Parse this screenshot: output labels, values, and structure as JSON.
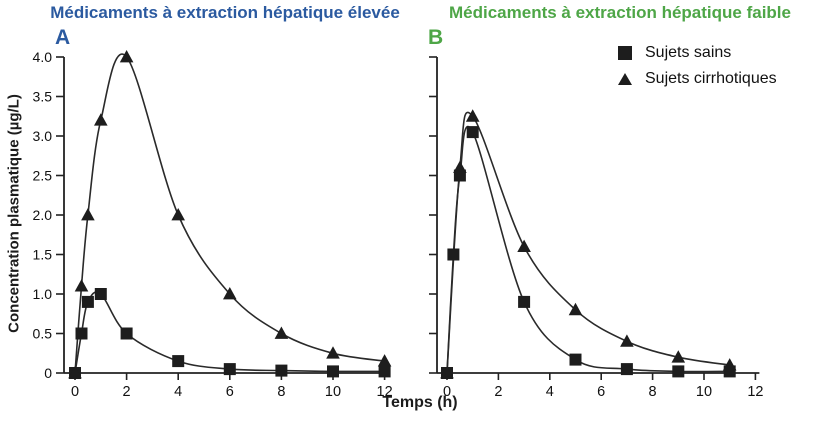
{
  "figure": {
    "x_axis_label": "Temps (h)",
    "y_axis_label": "Concentration plasmatique (µg/L)",
    "legend": {
      "position": "top-right",
      "items": [
        {
          "label": "Sujets sains",
          "marker": "square"
        },
        {
          "label": "Sujets cirrhotiques",
          "marker": "triangle"
        }
      ]
    },
    "colors": {
      "panel_a_accent": "#2B5AA0",
      "panel_b_accent": "#4EA647",
      "curve": "#2a2a2a",
      "marker": "#1d1d1d",
      "background": "#ffffff"
    }
  },
  "chart_data": [
    {
      "id": "A",
      "type": "line",
      "panel_label": "A",
      "title": "Médicaments à extraction hépatique élevée",
      "xlabel": "Temps (h)",
      "ylabel": "Concentration plasmatique (µg/L)",
      "xlim": [
        0,
        12
      ],
      "ylim": [
        0,
        4.0
      ],
      "grid": false,
      "x_ticks": [
        0,
        2,
        4,
        6,
        8,
        10,
        12
      ],
      "y_ticks": [
        0,
        0.5,
        1.0,
        1.5,
        2.0,
        2.5,
        3.0,
        3.5,
        4.0
      ],
      "y_tick_labels": [
        "0",
        "0.5",
        "1.0",
        "1.5",
        "2.0",
        "2.5",
        "3.0",
        "3.5",
        "4.0"
      ],
      "show_y_tick_labels": true,
      "series": [
        {
          "name": "Sujets sains",
          "marker": "square",
          "points": [
            [
              0,
              0
            ],
            [
              0.25,
              0.5
            ],
            [
              0.5,
              0.9
            ],
            [
              1,
              1.0
            ],
            [
              2,
              0.5
            ],
            [
              4,
              0.15
            ],
            [
              6,
              0.05
            ],
            [
              8,
              0.03
            ],
            [
              10,
              0.02
            ],
            [
              12,
              0.02
            ]
          ]
        },
        {
          "name": "Sujets cirrhotiques",
          "marker": "triangle",
          "points": [
            [
              0,
              0
            ],
            [
              0.25,
              1.1
            ],
            [
              0.5,
              2.0
            ],
            [
              1,
              3.2
            ],
            [
              2,
              4.0
            ],
            [
              4,
              2.0
            ],
            [
              6,
              1.0
            ],
            [
              8,
              0.5
            ],
            [
              10,
              0.25
            ],
            [
              12,
              0.15
            ]
          ]
        }
      ]
    },
    {
      "id": "B",
      "type": "line",
      "panel_label": "B",
      "title": "Médicaments à extraction hépatique faible",
      "xlabel": "Temps (h)",
      "ylabel": "Concentration plasmatique (µg/L)",
      "xlim": [
        0,
        12
      ],
      "ylim": [
        0,
        4.0
      ],
      "grid": false,
      "x_ticks": [
        0,
        2,
        4,
        6,
        8,
        10,
        12
      ],
      "y_ticks": [
        0,
        0.5,
        1.0,
        1.5,
        2.0,
        2.5,
        3.0,
        3.5,
        4.0
      ],
      "y_tick_labels": [
        "0",
        "0.5",
        "1.0",
        "1.5",
        "2.0",
        "2.5",
        "3.0",
        "3.5",
        "4.0"
      ],
      "show_y_tick_labels": false,
      "series": [
        {
          "name": "Sujets sains",
          "marker": "square",
          "points": [
            [
              0,
              0
            ],
            [
              0.25,
              1.5
            ],
            [
              0.5,
              2.5
            ],
            [
              1,
              3.05
            ],
            [
              3,
              0.9
            ],
            [
              5,
              0.17
            ],
            [
              7,
              0.05
            ],
            [
              9,
              0.02
            ],
            [
              11,
              0.02
            ]
          ]
        },
        {
          "name": "Sujets cirrhotiques",
          "marker": "triangle",
          "points": [
            [
              0,
              0
            ],
            [
              0.5,
              2.6
            ],
            [
              1,
              3.25
            ],
            [
              3,
              1.6
            ],
            [
              5,
              0.8
            ],
            [
              7,
              0.4
            ],
            [
              9,
              0.2
            ],
            [
              11,
              0.1
            ]
          ]
        }
      ]
    }
  ]
}
